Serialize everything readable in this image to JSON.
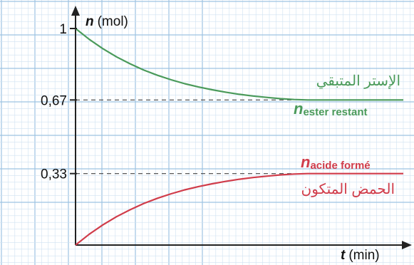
{
  "chart_data": {
    "type": "line",
    "ylabel_var": "n",
    "ylabel_unit": "(mol)",
    "xlabel_var": "t",
    "xlabel_unit": "(min)",
    "ylim": [
      0,
      1
    ],
    "yticks": [
      {
        "value": 1,
        "label": "1"
      },
      {
        "value": 0.67,
        "label": "0,67"
      },
      {
        "value": 0.33,
        "label": "0,33"
      }
    ],
    "grid": true,
    "series": [
      {
        "name": "n ester restant",
        "label_main": "n",
        "label_sub": "ester restant",
        "label_ar": "الإستر المتبقي",
        "color": "#4a9a5a",
        "y": [
          1.0,
          0.95,
          0.907,
          0.869,
          0.837,
          0.808,
          0.784,
          0.763,
          0.745,
          0.73,
          0.717,
          0.706,
          0.696,
          0.688,
          0.682,
          0.676,
          0.672,
          0.67,
          0.67,
          0.67,
          0.67,
          0.67,
          0.67,
          0.67,
          0.67
        ],
        "asymptote": 0.67
      },
      {
        "name": "n acide formé",
        "label_main": "n",
        "label_sub": "acide formé",
        "label_ar": "الحمض المتكون",
        "color": "#d03c4a",
        "y": [
          0.0,
          0.05,
          0.093,
          0.131,
          0.163,
          0.192,
          0.216,
          0.237,
          0.255,
          0.27,
          0.283,
          0.294,
          0.304,
          0.312,
          0.318,
          0.324,
          0.328,
          0.33,
          0.33,
          0.33,
          0.33,
          0.33,
          0.33,
          0.33,
          0.33
        ],
        "asymptote": 0.33
      }
    ],
    "colors": {
      "grid_major": "#9ec3e2",
      "grid_minor": "#cfe2f2",
      "axis": "#222222",
      "dashed": "#444444"
    }
  }
}
